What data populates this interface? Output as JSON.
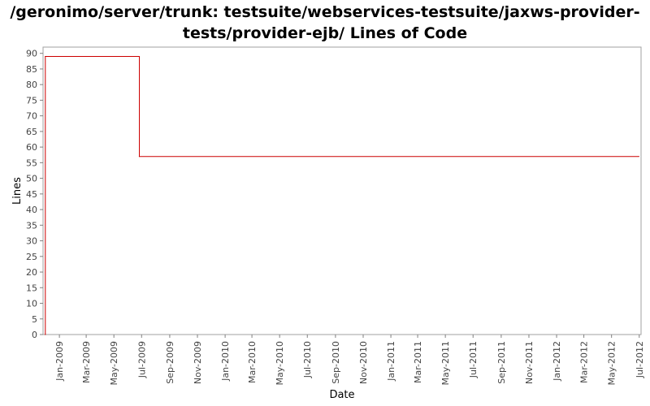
{
  "chart_title": {
    "line1": "/geronimo/server/trunk: testsuite/webservices-testsuite/jaxws-provider-",
    "line2": "tests/provider-ejb/ Lines of Code"
  },
  "chart_data": {
    "type": "line",
    "title": "/geronimo/server/trunk: testsuite/webservices-testsuite/jaxws-provider-tests/provider-ejb/ Lines of Code",
    "xlabel": "Date",
    "ylabel": "Lines",
    "ylim": [
      0,
      92
    ],
    "yticks": [
      0,
      5,
      10,
      15,
      20,
      25,
      30,
      35,
      40,
      45,
      50,
      55,
      60,
      65,
      70,
      75,
      80,
      85,
      90
    ],
    "xlim": [
      "2008-11-26",
      "2012-07-05"
    ],
    "xticks": [
      "Jan-2009",
      "Mar-2009",
      "May-2009",
      "Jul-2009",
      "Sep-2009",
      "Nov-2009",
      "Jan-2010",
      "Mar-2010",
      "May-2010",
      "Jul-2010",
      "Sep-2010",
      "Nov-2010",
      "Jan-2011",
      "Mar-2011",
      "May-2011",
      "Jul-2011",
      "Sep-2011",
      "Nov-2011",
      "Jan-2012",
      "Mar-2012",
      "May-2012",
      "Jul-2012"
    ],
    "grid": false,
    "series": [
      {
        "color": "#cc0000",
        "step": true,
        "x": [
          "2008-12-01",
          "2008-12-01",
          "2009-06-26",
          "2012-06-30"
        ],
        "y": [
          0,
          89,
          57,
          57
        ]
      }
    ]
  }
}
